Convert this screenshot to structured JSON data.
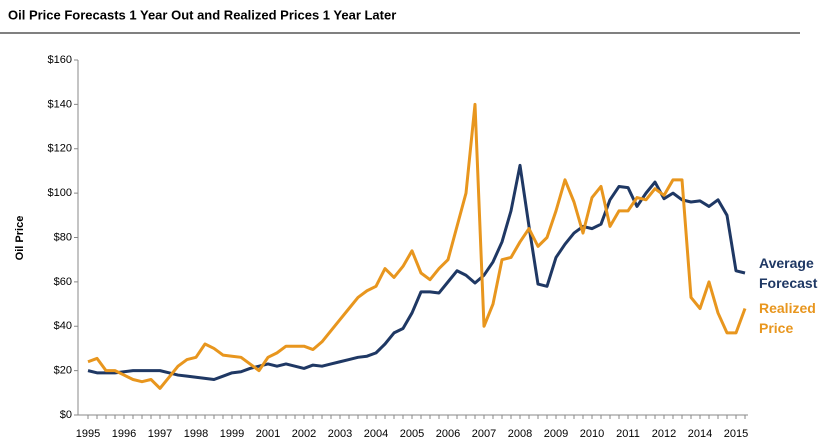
{
  "chart_data": {
    "type": "line",
    "title": "Oil Price Forecasts 1 Year Out and Realized Prices 1 Year Later",
    "y_label": "Oil Price",
    "categories": [
      "1995",
      null,
      null,
      null,
      "1996",
      null,
      null,
      null,
      "1997",
      null,
      null,
      null,
      "1998",
      null,
      null,
      null,
      "1999",
      null,
      null,
      null,
      "2001",
      null,
      null,
      null,
      "2002",
      null,
      null,
      null,
      "2003",
      null,
      null,
      null,
      "2004",
      null,
      null,
      null,
      "2005",
      null,
      null,
      null,
      "2006",
      null,
      null,
      null,
      "2007",
      null,
      null,
      null,
      "2008",
      null,
      null,
      null,
      "2009",
      null,
      null,
      null,
      "2010",
      null,
      null,
      null,
      "2011",
      null,
      null,
      null,
      "2012",
      null,
      null,
      null,
      "2014",
      null,
      null,
      null,
      "2015",
      null
    ],
    "series": [
      {
        "name": "Average Forecast",
        "color": "#1f3864",
        "values": [
          20,
          19,
          19,
          19,
          19.5,
          20,
          20,
          20,
          20,
          19,
          18,
          17.5,
          17,
          16.5,
          16,
          17.5,
          19,
          19.5,
          21,
          22,
          23,
          22,
          23,
          22,
          21,
          22.5,
          22,
          23,
          24,
          25,
          26,
          26.5,
          28,
          32,
          37,
          39,
          46,
          55.5,
          55.5,
          55,
          60,
          65,
          63,
          59.5,
          63,
          69,
          78,
          92,
          112.5,
          85,
          59,
          58,
          71,
          77,
          82,
          85,
          84,
          86,
          97,
          103,
          102.5,
          94,
          100,
          105,
          97.5,
          100,
          97,
          96,
          96.5,
          94,
          97,
          90,
          65,
          64
        ]
      },
      {
        "name": "Realized Price",
        "color": "#e8961e",
        "values": [
          24,
          25.5,
          20,
          20,
          18,
          16,
          15,
          16,
          12,
          17,
          22,
          25,
          26,
          32,
          30,
          27,
          26.5,
          26,
          23,
          20,
          26,
          28,
          31,
          31,
          31,
          29.5,
          33,
          38,
          43,
          48,
          53,
          56,
          58,
          66,
          62,
          67,
          74,
          64,
          61,
          66,
          70,
          85,
          100,
          140,
          40,
          50,
          70,
          71,
          78,
          84,
          76,
          80,
          92,
          106,
          96,
          82,
          98,
          103,
          85,
          92,
          92,
          98,
          97,
          102,
          99,
          106,
          106,
          53,
          48,
          60,
          46,
          37,
          37,
          48
        ]
      }
    ],
    "ylim": [
      0,
      160
    ],
    "yticks": [
      {
        "value": 0,
        "label": "$0"
      },
      {
        "value": 20,
        "label": "$20"
      },
      {
        "value": 40,
        "label": "$40"
      },
      {
        "value": 60,
        "label": "$60"
      },
      {
        "value": 80,
        "label": "$80"
      },
      {
        "value": 100,
        "label": "$100"
      },
      {
        "value": 120,
        "label": "$120"
      },
      {
        "value": 140,
        "label": "$140"
      },
      {
        "value": 160,
        "label": "$160"
      }
    ],
    "grid": false
  }
}
